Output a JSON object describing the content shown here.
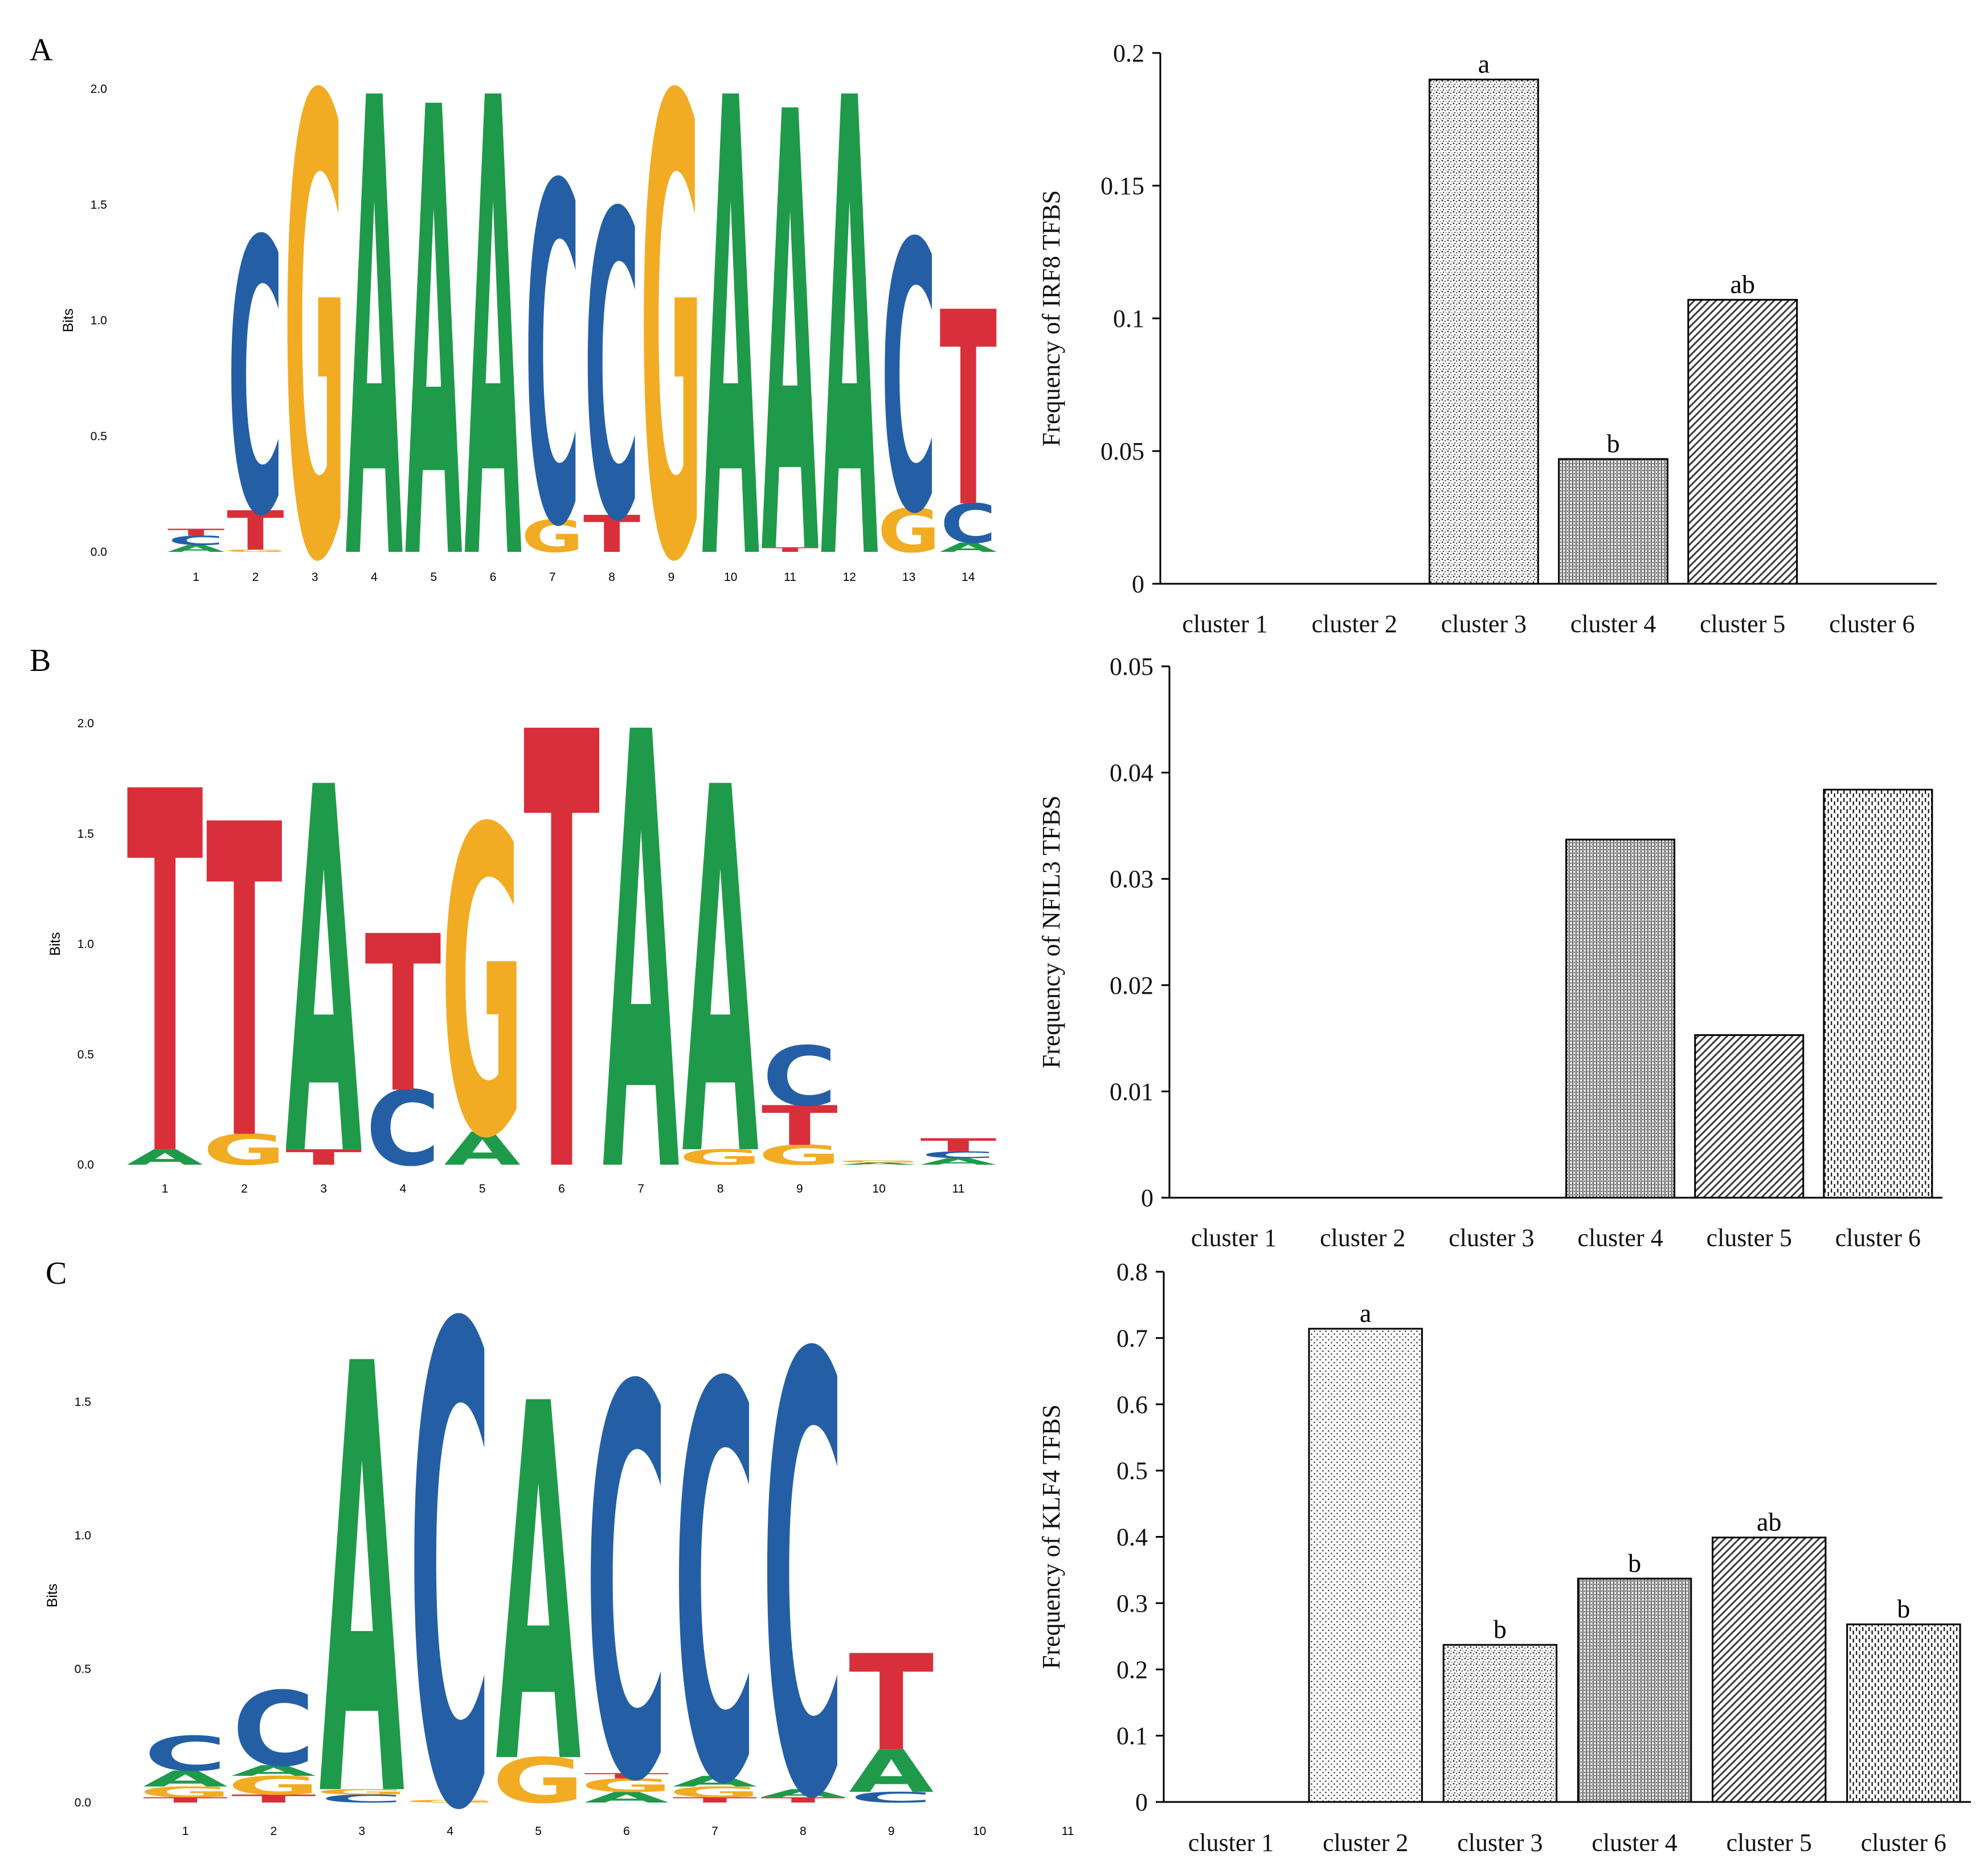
{
  "colors": {
    "A": "#1f9a4a",
    "C": "#245fa6",
    "G": "#f2ac23",
    "T": "#d92f3b",
    "axis": "#000000"
  },
  "panels": [
    {
      "label": "A",
      "logo": {
        "ylabel": "Bits",
        "yticks": [
          "0.0",
          "0.5",
          "1.0",
          "1.5",
          "2.0"
        ],
        "ymax": 2.0,
        "positions": [
          "1",
          "2",
          "3",
          "4",
          "5",
          "6",
          "7",
          "8",
          "9",
          "10",
          "11",
          "12",
          "13",
          "14"
        ],
        "columns": [
          [
            [
              "A",
              0.03
            ],
            [
              "C",
              0.04
            ],
            [
              "T",
              0.03
            ]
          ],
          [
            [
              "G",
              0.01
            ],
            [
              "T",
              0.17
            ],
            [
              "C",
              1.18
            ]
          ],
          [
            [
              "G",
              1.98
            ]
          ],
          [
            [
              "A",
              1.98
            ]
          ],
          [
            [
              "A",
              1.94
            ]
          ],
          [
            [
              "A",
              1.98
            ]
          ],
          [
            [
              "G",
              0.14
            ],
            [
              "C",
              1.46
            ]
          ],
          [
            [
              "T",
              0.16
            ],
            [
              "C",
              1.32
            ]
          ],
          [
            [
              "G",
              1.98
            ]
          ],
          [
            [
              "A",
              1.98
            ]
          ],
          [
            [
              "T",
              0.02
            ],
            [
              "A",
              1.9
            ]
          ],
          [
            [
              "A",
              1.98
            ]
          ],
          [
            [
              "G",
              0.19
            ],
            [
              "C",
              1.16
            ]
          ],
          [
            [
              "A",
              0.04
            ],
            [
              "C",
              0.17
            ],
            [
              "T",
              0.84
            ]
          ]
        ]
      },
      "bars": {
        "ylabel": "Frequency of IRF8 TFBS",
        "yticks": [
          "0",
          "0.05",
          "0.1",
          "0.15",
          "0.2"
        ],
        "ymax": 0.2,
        "categories": [
          "cluster 1",
          "cluster 2",
          "cluster 3",
          "cluster 4",
          "cluster 5",
          "cluster 6"
        ],
        "values": [
          0,
          0,
          0.19,
          0.047,
          0.107,
          0
        ],
        "sig": [
          "",
          "",
          "a",
          "b",
          "ab",
          ""
        ],
        "patterns": [
          "p-dots",
          "p-dots",
          "p-cross",
          "p-vdense",
          "p-diag",
          "p-vdash"
        ]
      }
    },
    {
      "label": "B",
      "logo": {
        "ylabel": "Bits",
        "yticks": [
          "0.0",
          "0.5",
          "1.0",
          "1.5",
          "2.0"
        ],
        "ymax": 2.0,
        "positions": [
          "1",
          "2",
          "3",
          "4",
          "5",
          "6",
          "7",
          "8",
          "9",
          "10",
          "11"
        ],
        "columns": [
          [
            [
              "A",
              0.07
            ],
            [
              "T",
              1.64
            ]
          ],
          [
            [
              "G",
              0.14
            ],
            [
              "T",
              1.42
            ]
          ],
          [
            [
              "T",
              0.07
            ],
            [
              "A",
              1.66
            ]
          ],
          [
            [
              "C",
              0.34
            ],
            [
              "T",
              0.71
            ]
          ],
          [
            [
              "A",
              0.15
            ],
            [
              "G",
              1.39
            ]
          ],
          [
            [
              "T",
              1.98
            ]
          ],
          [
            [
              "A",
              1.98
            ]
          ],
          [
            [
              "G",
              0.07
            ],
            [
              "A",
              1.66
            ]
          ],
          [
            [
              "G",
              0.09
            ],
            [
              "T",
              0.18
            ],
            [
              "C",
              0.27
            ]
          ],
          [
            [
              "A",
              0.01
            ],
            [
              "G",
              0.01
            ]
          ],
          [
            [
              "A",
              0.03
            ],
            [
              "C",
              0.03
            ],
            [
              "T",
              0.06
            ]
          ]
        ]
      },
      "bars": {
        "ylabel": "Frequency of NFIL3 TFBS",
        "yticks": [
          "0",
          "0.01",
          "0.02",
          "0.03",
          "0.04",
          "0.05"
        ],
        "ymax": 0.05,
        "categories": [
          "cluster 1",
          "cluster 2",
          "cluster 3",
          "cluster 4",
          "cluster 5",
          "cluster 6"
        ],
        "values": [
          0,
          0,
          0,
          0.0337,
          0.0153,
          0.0384
        ],
        "sig": [
          "",
          "",
          "",
          "",
          "",
          ""
        ],
        "patterns": [
          "p-dots",
          "p-dots",
          "p-cross",
          "p-vdense",
          "p-diag",
          "p-vdash"
        ]
      }
    },
    {
      "label": "C",
      "logo": {
        "ylabel": "Bits",
        "yticks": [
          "0.0",
          "0.5",
          "1.0",
          "1.5"
        ],
        "ymax": 1.55,
        "positions": [
          "1",
          "2",
          "3",
          "4",
          "5",
          "6",
          "7",
          "8",
          "9",
          "10",
          "11"
        ],
        "columns": [
          [
            [
              "T",
              0.02
            ],
            [
              "G",
              0.04
            ],
            [
              "A",
              0.06
            ],
            [
              "C",
              0.13
            ]
          ],
          [
            [
              "T",
              0.03
            ],
            [
              "G",
              0.07
            ],
            [
              "A",
              0.04
            ],
            [
              "C",
              0.28
            ]
          ],
          [
            [
              "C",
              0.03
            ],
            [
              "G",
              0.02
            ],
            [
              "A",
              1.61
            ]
          ],
          [
            [
              "G",
              0.01
            ],
            [
              "C",
              1.79
            ]
          ],
          [
            [
              "G",
              0.17
            ],
            [
              "A",
              1.34
            ]
          ],
          [
            [
              "A",
              0.04
            ],
            [
              "G",
              0.05
            ],
            [
              "T",
              0.02
            ],
            [
              "C",
              1.46
            ]
          ],
          [
            [
              "T",
              0.02
            ],
            [
              "G",
              0.04
            ],
            [
              "A",
              0.04
            ],
            [
              "C",
              1.48
            ]
          ],
          [
            [
              "T",
              0.02
            ],
            [
              "A",
              0.03
            ],
            [
              "C",
              1.64
            ]
          ],
          [
            [
              "C",
              0.04
            ],
            [
              "A",
              0.16
            ],
            [
              "T",
              0.36
            ]
          ],
          [],
          []
        ]
      },
      "bars": {
        "ylabel": "Frequency of KLF4 TFBS",
        "yticks": [
          "0",
          "0.1",
          "0.2",
          "0.3",
          "0.4",
          "0.5",
          "0.6",
          "0.7",
          "0.8"
        ],
        "ymax": 0.8,
        "categories": [
          "cluster 1",
          "cluster 2",
          "cluster 3",
          "cluster 4",
          "cluster 5",
          "cluster 6"
        ],
        "values": [
          0,
          0.714,
          0.237,
          0.337,
          0.399,
          0.268
        ],
        "sig": [
          "",
          "a",
          "b",
          "b",
          "ab",
          "b"
        ],
        "patterns": [
          "p-dots",
          "p-dots",
          "p-cross",
          "p-vdense",
          "p-diag",
          "p-vdash"
        ]
      }
    }
  ]
}
